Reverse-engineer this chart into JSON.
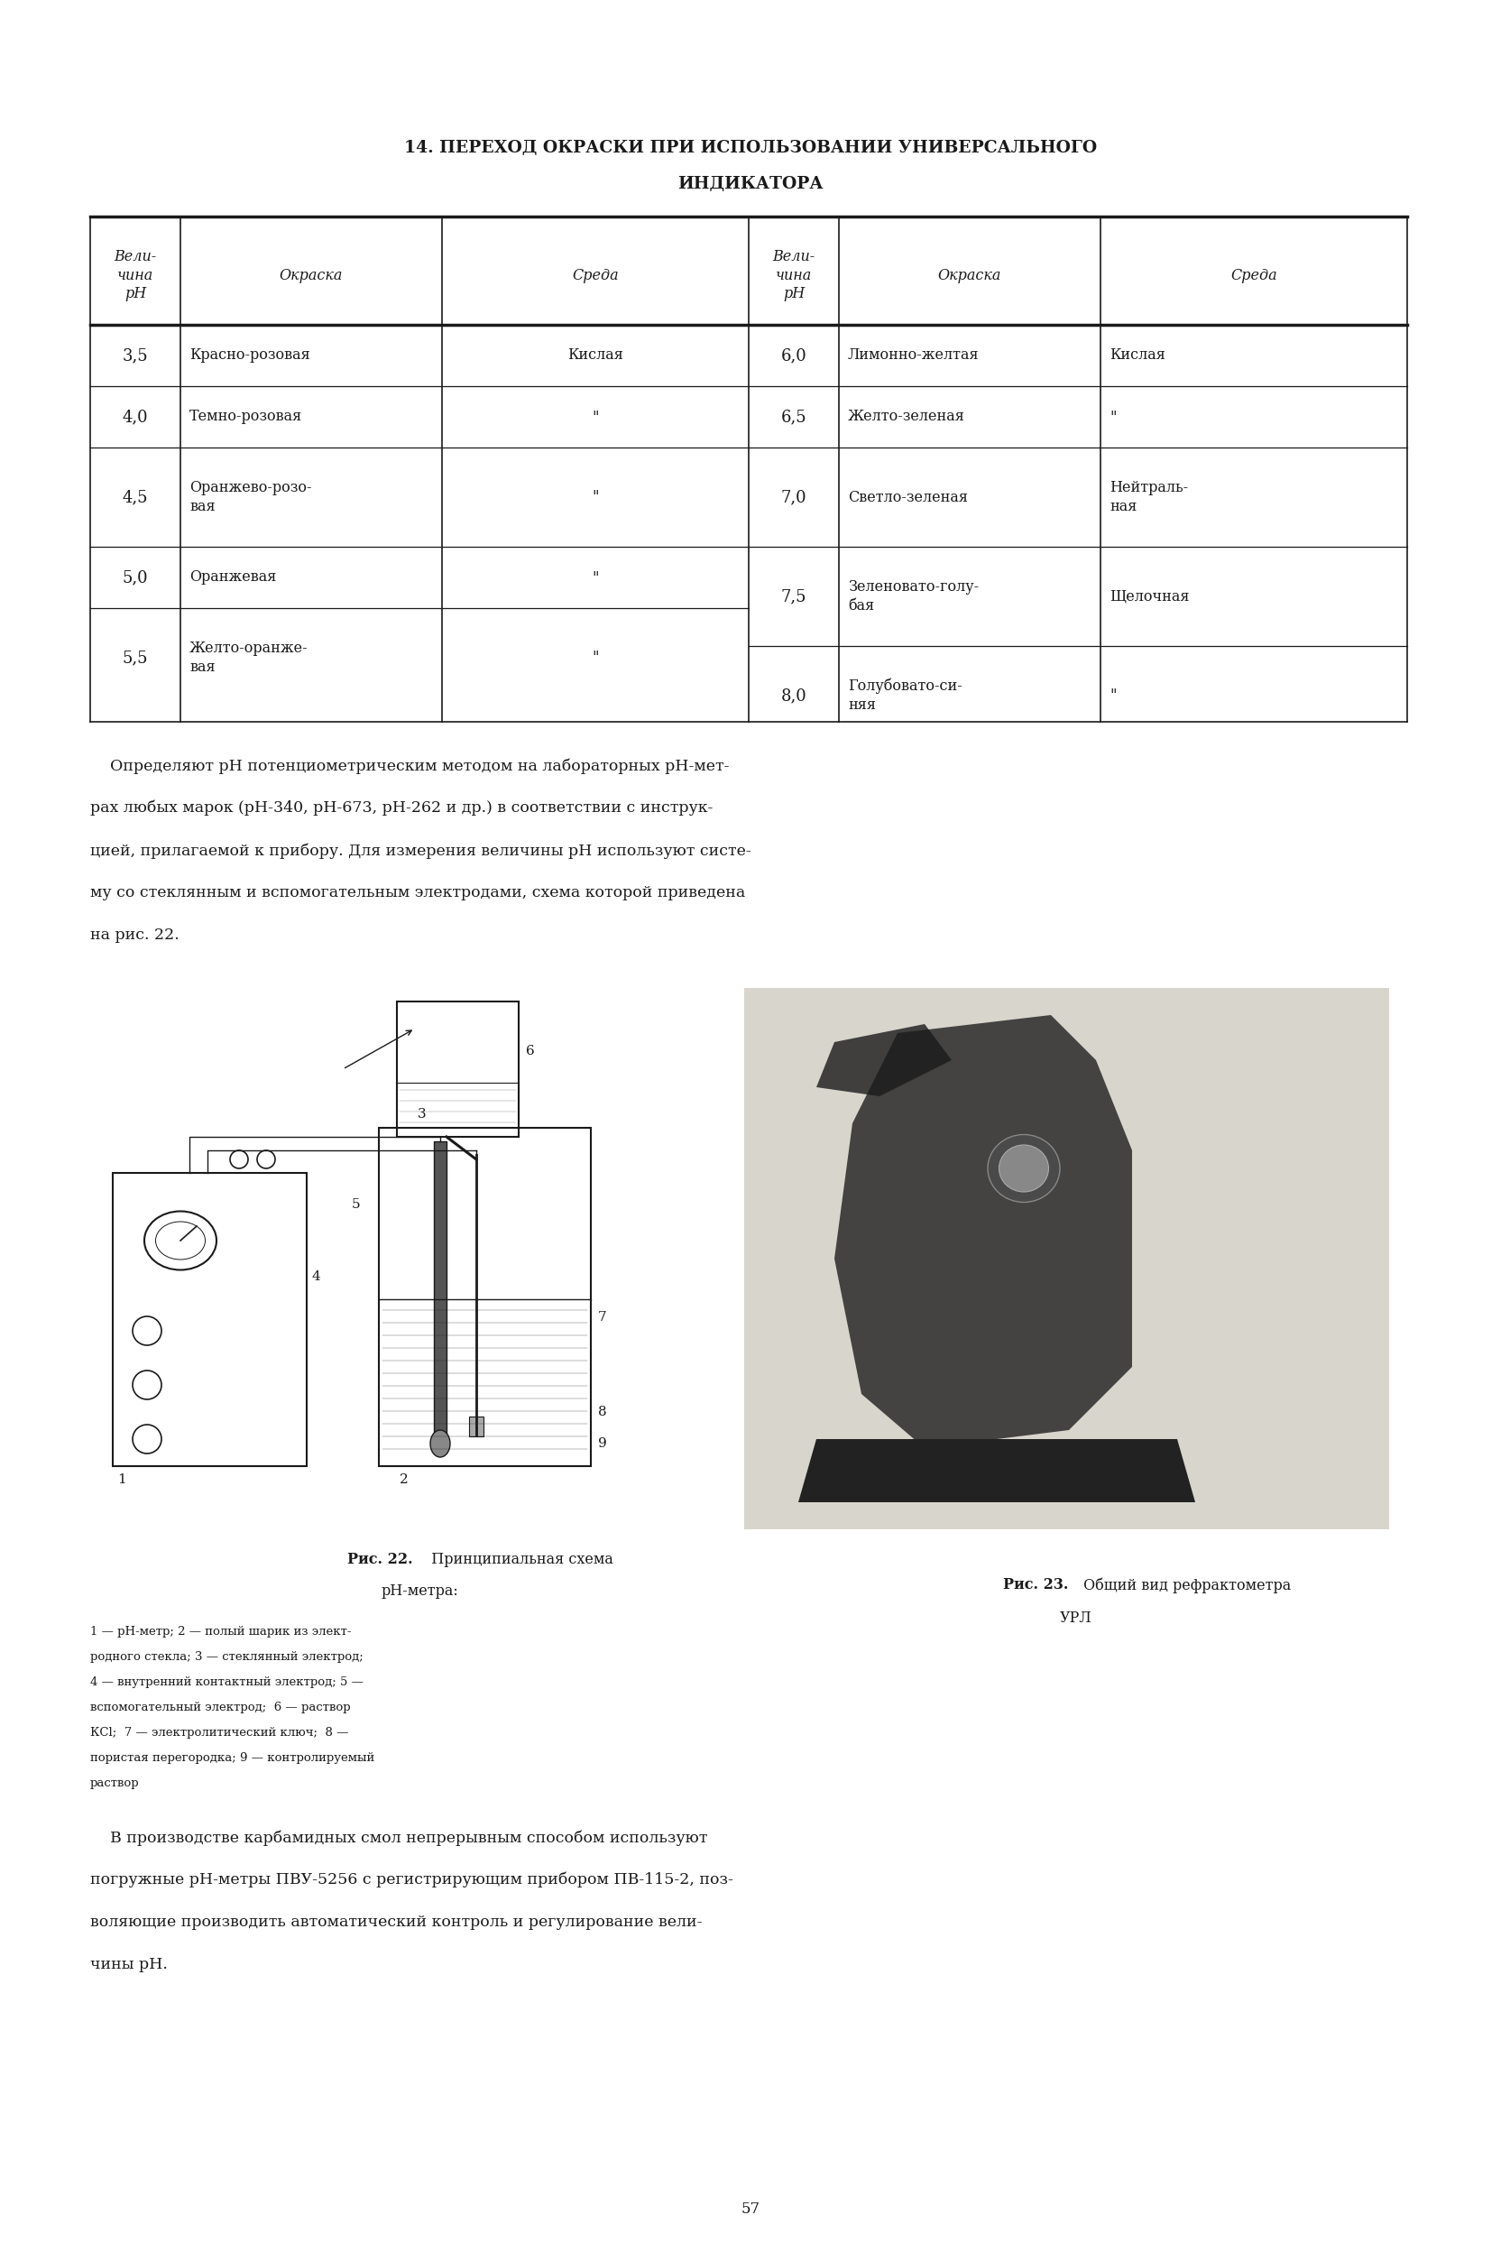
{
  "title_line1": "14. ПЕРЕХОД ОКРАСКИ ПРИ ИСПОЛЬЗОВАНИИ УНИВЕРСАЛЬНОГО",
  "title_line2": "ИНДИКАТОРА",
  "left_ph": [
    "3,5",
    "4,0",
    "4,5",
    "5,0",
    "5,5"
  ],
  "left_color": [
    "Красно-розовая",
    "Темно-розовая",
    "Оранжево-розо-\nвая",
    "Оранжевая",
    "Желто-оранже-\nвая"
  ],
  "left_sreda": [
    "Кислая",
    "\"",
    "\"",
    "\"",
    "\""
  ],
  "right_ph": [
    "6,0",
    "6,5",
    "7,0",
    "7,5",
    "8,0"
  ],
  "right_color": [
    "Лимонно-желтая",
    "Желто-зеленая",
    "Светло-зеленая",
    "Зеленовато-голу-\nбая",
    "Голубовато-си-\nняя"
  ],
  "right_sreda": [
    "Кислая",
    "\"",
    "Нейтраль-\nная",
    "Щелочная",
    "\""
  ],
  "para1_lines": [
    "    Определяют рН потенциометрическим методом на лабораторных рН-мет-",
    "рах любых марок (рН-340, рН-673, рН-262 и др.) в соответствии с инструк-",
    "цией, прилагаемой к прибору. Для измерения величины рН используют систе-",
    "му со стеклянным и вспомогательным электродами, схема которой приведена",
    "на рис. 22."
  ],
  "fig22_cap_bold": "Рис. 22.",
  "fig22_cap_rest": "  Принципиальная схема",
  "fig22_cap_line2": "рН-метра:",
  "fig22_legend_lines": [
    "1 — рН-метр; 2 — полый шарик из элект-",
    "родного стекла; 3 — стеклянный электрод;",
    "4 — внутренний контактный электрод; 5 —",
    "вспомогательный электрод;  6 — раствор",
    "КСl;  7 — электролитический ключ;  8 —",
    "пористая перегородка; 9 — контролируемый",
    "раствор"
  ],
  "fig23_cap_bold": "Рис. 23.",
  "fig23_cap_rest": " Общий вид рефрактометра",
  "fig23_cap_line2": "УРЛ",
  "para2_lines": [
    "    В производстве карбамидных смол непрерывным способом используют",
    "погружные рН-метры ПВУ-5256 с регистрирующим прибором ПВ-115-2, поз-",
    "воляющие производить автоматический контроль и регулирование вели-",
    "чины рН."
  ],
  "page_number": "57",
  "bg_color": "#ffffff",
  "text_color": "#1a1a1a",
  "line_color": "#1a1a1a"
}
